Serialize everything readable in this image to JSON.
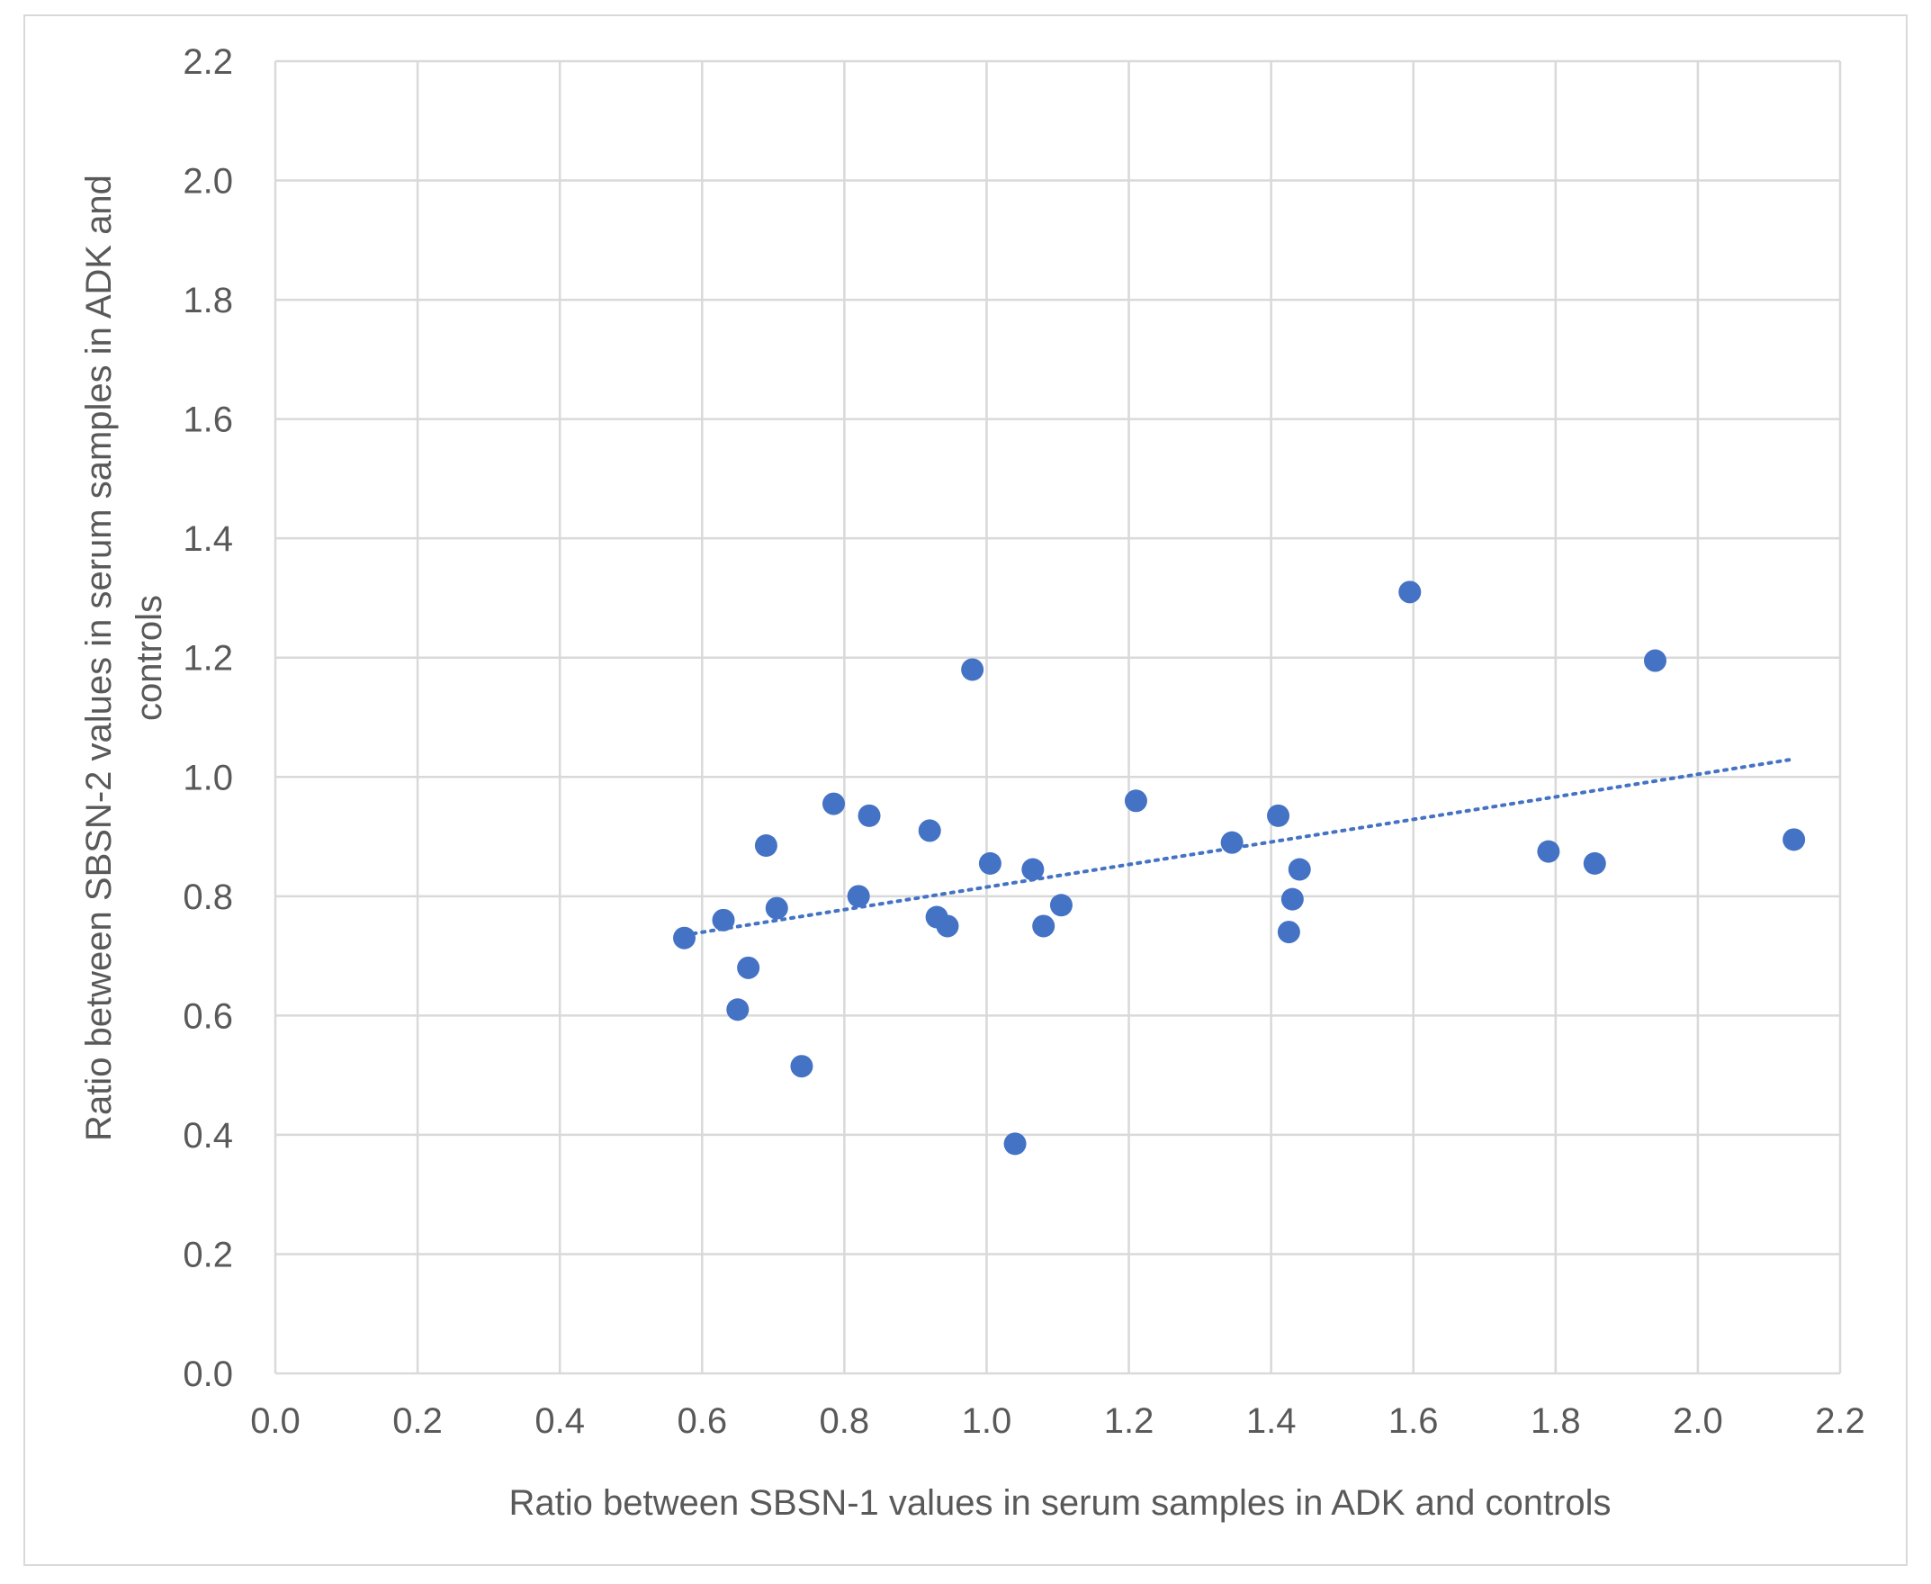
{
  "chart_data": {
    "type": "scatter",
    "title": "",
    "xlabel": "Ratio between SBSN-1 values in serum samples in ADK and controls",
    "ylabel_lines": [
      "Ratio between SBSN-2 values in serum samples in ADK and",
      "controls"
    ],
    "xlim": [
      0,
      2.2
    ],
    "ylim": [
      0,
      2.2
    ],
    "x_ticks": [
      "0.0",
      "0.2",
      "0.4",
      "0.6",
      "0.8",
      "1.0",
      "1.2",
      "1.4",
      "1.6",
      "1.8",
      "2.0",
      "2.2"
    ],
    "y_ticks": [
      "0.0",
      "0.2",
      "0.4",
      "0.6",
      "0.8",
      "1.0",
      "1.2",
      "1.4",
      "1.6",
      "1.8",
      "2.0",
      "2.2"
    ],
    "grid": true,
    "legend": false,
    "marker_color": "#4472c4",
    "series": [
      {
        "points": [
          [
            0.575,
            0.73
          ],
          [
            0.63,
            0.76
          ],
          [
            0.65,
            0.61
          ],
          [
            0.665,
            0.68
          ],
          [
            0.69,
            0.885
          ],
          [
            0.705,
            0.78
          ],
          [
            0.74,
            0.515
          ],
          [
            0.785,
            0.955
          ],
          [
            0.82,
            0.8
          ],
          [
            0.835,
            0.935
          ],
          [
            0.92,
            0.91
          ],
          [
            0.93,
            0.765
          ],
          [
            0.945,
            0.75
          ],
          [
            0.98,
            1.18
          ],
          [
            1.005,
            0.855
          ],
          [
            1.04,
            0.385
          ],
          [
            1.065,
            0.845
          ],
          [
            1.08,
            0.75
          ],
          [
            1.105,
            0.785
          ],
          [
            1.21,
            0.96
          ],
          [
            1.345,
            0.89
          ],
          [
            1.41,
            0.935
          ],
          [
            1.425,
            0.74
          ],
          [
            1.43,
            0.795
          ],
          [
            1.44,
            0.845
          ],
          [
            1.595,
            1.31
          ],
          [
            1.79,
            0.875
          ],
          [
            1.855,
            0.855
          ],
          [
            1.94,
            1.195
          ],
          [
            2.135,
            0.895
          ]
        ]
      }
    ],
    "trendline": {
      "type": "linear",
      "style": "dotted",
      "x_range": [
        0.575,
        2.135
      ],
      "y_range": [
        0.735,
        1.03
      ]
    }
  }
}
